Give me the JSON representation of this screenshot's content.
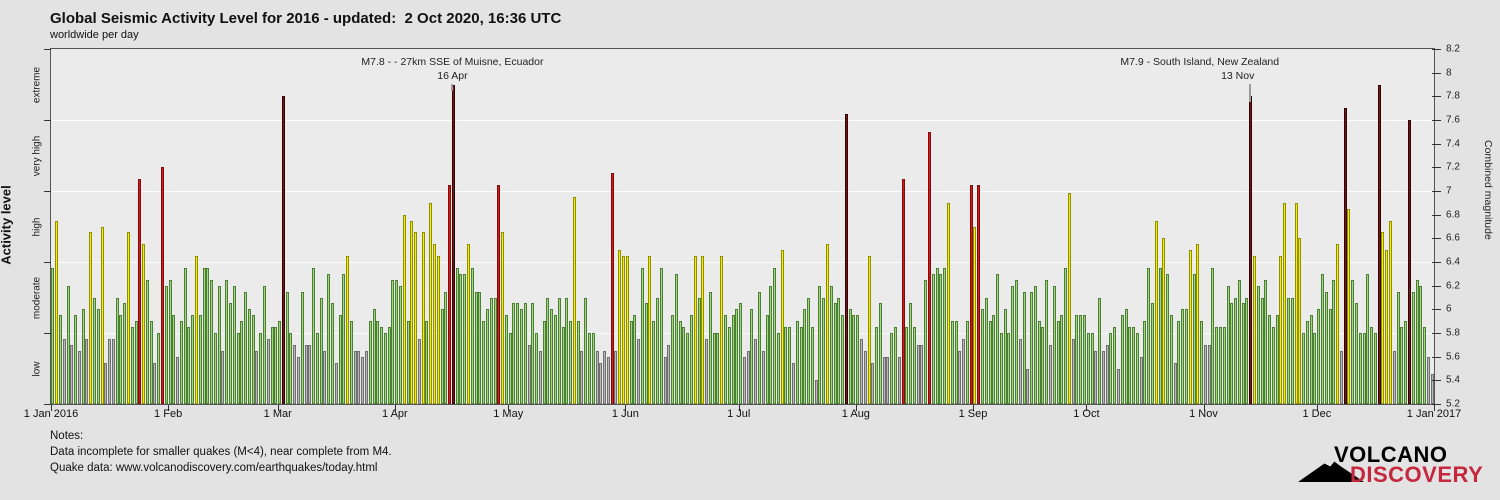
{
  "title": "Global Seismic Activity Level for 2016 - updated:  2 Oct 2020, 16:36 UTC",
  "subtitle": "worldwide per day",
  "y_left": {
    "label": "Activity level",
    "categories": [
      "low",
      "moderate",
      "high",
      "very high",
      "extreme"
    ]
  },
  "y_right": {
    "label": "Combined magnitude",
    "min": 5.2,
    "max": 8.2,
    "tick_step": 0.2
  },
  "x_axis": {
    "labels": [
      "1 Jan 2016",
      "1 Feb",
      "1 Mar",
      "1 Apr",
      "1 May",
      "1 Jun",
      "1 Jul",
      "1 Aug",
      "1 Sep",
      "1 Oct",
      "1 Nov",
      "1 Dec",
      "1 Jan 2017"
    ],
    "month_start_days": [
      1,
      32,
      61,
      92,
      122,
      153,
      183,
      214,
      245,
      275,
      306,
      336,
      367
    ]
  },
  "annotations": [
    {
      "text": "M7.8 - - 27km SSE of Muisne, Ecuador",
      "date_label": "16 Apr",
      "day_of_year": 107
    },
    {
      "text": "M7.9 - South Island, New Zealand",
      "date_label": "13 Nov",
      "day_of_year": 318
    }
  ],
  "notes": {
    "line1": "Notes:",
    "line2": "Data incomplete for smaller quakes (M<4), near complete from M4.",
    "line3": "Quake data: www.volcanodiscovery.com/earthquakes/today.html"
  },
  "logo": {
    "line1": "VOLCANO",
    "line2": "DISCOVERY"
  },
  "chart_data": {
    "type": "bar",
    "title": "Global Seismic Activity Level for 2016",
    "x_unit": "day of year 2016 (1 = 1 Jan 2016, 366 = 31 Dec 2016)",
    "ylabel_left": "Activity level",
    "ylabel_right": "Combined magnitude",
    "ylim": [
      5.2,
      8.2
    ],
    "baseline": 5.2,
    "grid_magnitudes": [
      5.8,
      6.4,
      7.0,
      7.6
    ],
    "bands": [
      {
        "name": "low",
        "min": 5.2,
        "max": 5.8,
        "fill": "#b9b9b9",
        "edge": "#6f6f6f"
      },
      {
        "name": "moderate",
        "min": 5.8,
        "max": 6.4,
        "fill": "#a3d77d",
        "edge": "#4a7f35"
      },
      {
        "name": "high",
        "min": 6.4,
        "max": 7.0,
        "fill": "#f4f000",
        "edge": "#8f8f00"
      },
      {
        "name": "very high",
        "min": 7.0,
        "max": 7.6,
        "fill": "#df1414",
        "edge": "#7e0d0d"
      },
      {
        "name": "extreme",
        "min": 7.6,
        "max": 8.2,
        "fill": "#7c1414",
        "edge": "#2e0404"
      }
    ],
    "values": [
      6.35,
      6.75,
      5.95,
      5.75,
      6.2,
      5.7,
      5.95,
      5.65,
      6.0,
      5.75,
      6.65,
      6.1,
      6.0,
      6.7,
      5.55,
      5.75,
      5.75,
      6.1,
      5.95,
      6.05,
      6.65,
      5.85,
      5.9,
      7.1,
      6.55,
      6.25,
      5.9,
      5.55,
      5.8,
      7.2,
      6.2,
      6.25,
      5.95,
      5.6,
      5.9,
      6.35,
      5.85,
      5.95,
      6.45,
      5.95,
      6.35,
      6.35,
      6.25,
      5.8,
      6.2,
      5.65,
      6.25,
      6.05,
      6.2,
      5.8,
      5.9,
      6.15,
      6.0,
      5.95,
      5.65,
      5.8,
      6.2,
      5.75,
      5.85,
      5.85,
      5.9,
      7.8,
      6.15,
      5.8,
      5.7,
      5.6,
      6.15,
      5.7,
      5.7,
      6.35,
      5.8,
      6.1,
      5.65,
      6.3,
      6.05,
      5.55,
      5.95,
      6.3,
      6.45,
      5.9,
      5.65,
      5.65,
      5.6,
      5.65,
      5.9,
      6.0,
      5.9,
      5.85,
      5.8,
      5.85,
      6.25,
      6.25,
      6.2,
      6.8,
      5.9,
      6.75,
      6.65,
      5.75,
      6.65,
      5.9,
      6.9,
      6.55,
      6.45,
      6.0,
      6.15,
      7.05,
      7.9,
      6.35,
      6.3,
      6.3,
      6.55,
      6.35,
      6.15,
      6.15,
      5.9,
      6.0,
      6.1,
      6.1,
      7.05,
      6.65,
      5.95,
      5.8,
      6.05,
      6.05,
      6.0,
      6.05,
      5.7,
      6.05,
      5.8,
      5.65,
      5.9,
      6.1,
      6.0,
      5.95,
      6.1,
      5.85,
      6.1,
      5.9,
      6.95,
      5.9,
      5.65,
      6.1,
      5.8,
      5.8,
      5.65,
      5.55,
      5.65,
      5.6,
      7.15,
      5.65,
      6.5,
      6.45,
      6.45,
      5.9,
      5.95,
      5.75,
      6.35,
      6.05,
      6.45,
      5.9,
      6.1,
      6.35,
      5.6,
      5.7,
      5.95,
      6.3,
      5.9,
      5.85,
      5.8,
      5.95,
      6.45,
      6.1,
      6.45,
      5.75,
      6.15,
      5.8,
      5.8,
      6.45,
      5.95,
      5.85,
      5.95,
      6.0,
      6.05,
      5.6,
      5.65,
      6.0,
      5.75,
      6.15,
      5.65,
      5.95,
      6.2,
      6.35,
      5.8,
      6.5,
      5.85,
      5.85,
      5.55,
      5.9,
      5.85,
      6.0,
      6.1,
      5.85,
      5.4,
      6.2,
      6.1,
      6.55,
      6.2,
      6.05,
      6.1,
      5.95,
      7.65,
      6.0,
      5.95,
      5.95,
      5.75,
      5.65,
      6.45,
      5.55,
      5.85,
      6.05,
      5.6,
      5.6,
      5.8,
      5.85,
      5.6,
      7.1,
      5.85,
      6.05,
      5.85,
      5.7,
      5.7,
      6.25,
      7.5,
      6.3,
      6.35,
      6.3,
      6.35,
      6.9,
      5.9,
      5.9,
      5.65,
      5.75,
      5.9,
      7.05,
      6.7,
      7.05,
      6.0,
      6.1,
      5.9,
      5.95,
      6.3,
      5.8,
      6.0,
      5.8,
      6.2,
      6.25,
      5.75,
      6.15,
      5.5,
      6.15,
      6.2,
      5.9,
      5.85,
      6.25,
      5.7,
      6.2,
      5.9,
      5.95,
      6.35,
      6.98,
      5.75,
      5.95,
      5.95,
      5.95,
      5.8,
      5.8,
      5.65,
      6.1,
      5.65,
      5.7,
      5.8,
      5.85,
      5.5,
      5.95,
      6.0,
      5.85,
      5.85,
      5.8,
      5.6,
      5.9,
      6.35,
      6.05,
      6.75,
      6.35,
      6.6,
      6.3,
      5.95,
      5.55,
      5.9,
      6.0,
      6.0,
      6.5,
      6.3,
      6.55,
      5.9,
      5.7,
      5.7,
      6.35,
      5.85,
      5.85,
      5.85,
      6.2,
      6.05,
      6.1,
      6.25,
      6.05,
      6.1,
      7.8,
      6.45,
      6.2,
      6.1,
      6.25,
      5.95,
      5.85,
      5.95,
      6.45,
      6.9,
      6.1,
      6.1,
      6.9,
      6.6,
      5.8,
      5.9,
      5.95,
      5.8,
      6.0,
      6.3,
      6.15,
      6.0,
      6.25,
      6.55,
      5.65,
      7.7,
      6.85,
      6.25,
      6.05,
      5.8,
      5.8,
      6.3,
      5.85,
      5.8,
      7.9,
      6.65,
      6.5,
      6.75,
      5.65,
      6.15,
      5.85,
      5.9,
      7.6,
      6.15,
      6.25,
      6.2,
      5.85,
      5.6,
      5.45
    ]
  }
}
